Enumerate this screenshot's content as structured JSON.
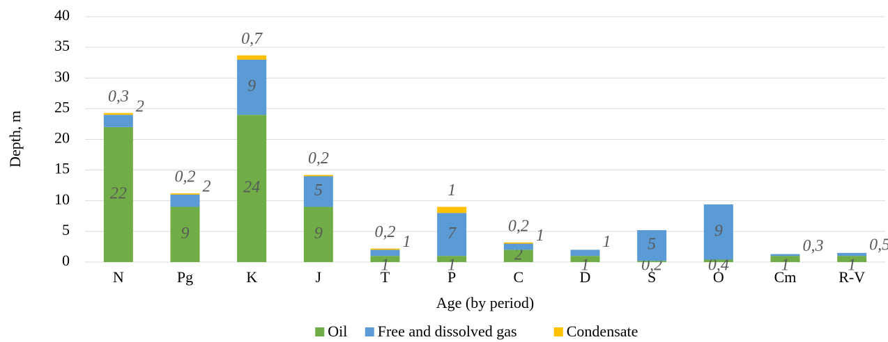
{
  "chart_data": {
    "type": "stacked_bar",
    "x_label": "Age (by period)",
    "y_label": "Depth, m",
    "categories": [
      "N",
      "Pg",
      "K",
      "J",
      "T",
      "P",
      "C",
      "D",
      "S",
      "O",
      "Cm",
      "R-V"
    ],
    "series": [
      {
        "name": "Oil",
        "color": "#70ad47",
        "values": [
          22,
          9,
          24,
          9,
          1,
          1,
          2,
          1,
          0.2,
          0.4,
          1,
          1
        ],
        "value_labels": [
          "22",
          "9",
          "24",
          "9",
          "1",
          "1",
          "2",
          "1",
          "0,2",
          "0,4",
          "1",
          "1"
        ]
      },
      {
        "name": "Free and dissolved gas",
        "color": "#5b9bd5",
        "values": [
          2,
          2,
          9,
          5,
          1,
          7,
          1,
          1,
          5,
          9,
          0.3,
          0.5
        ],
        "value_labels": [
          "2",
          "2",
          "9",
          "5",
          "1",
          "7",
          "1",
          "1",
          "5",
          "9",
          "0,3",
          "0,5"
        ]
      },
      {
        "name": "Condensate",
        "color": "#ffc000",
        "values": [
          0.3,
          0.2,
          0.7,
          0.2,
          0.2,
          1,
          0.2,
          null,
          null,
          null,
          null,
          null
        ],
        "value_labels": [
          "0,3",
          "0,2",
          "0,7",
          "0,2",
          "0,2",
          "1",
          "0,2",
          null,
          null,
          null,
          null,
          null
        ]
      }
    ],
    "ylim": [
      0,
      40
    ],
    "yticks": [
      0,
      5,
      10,
      15,
      20,
      25,
      30,
      35,
      40
    ],
    "grid": true,
    "legend": "bottom"
  }
}
